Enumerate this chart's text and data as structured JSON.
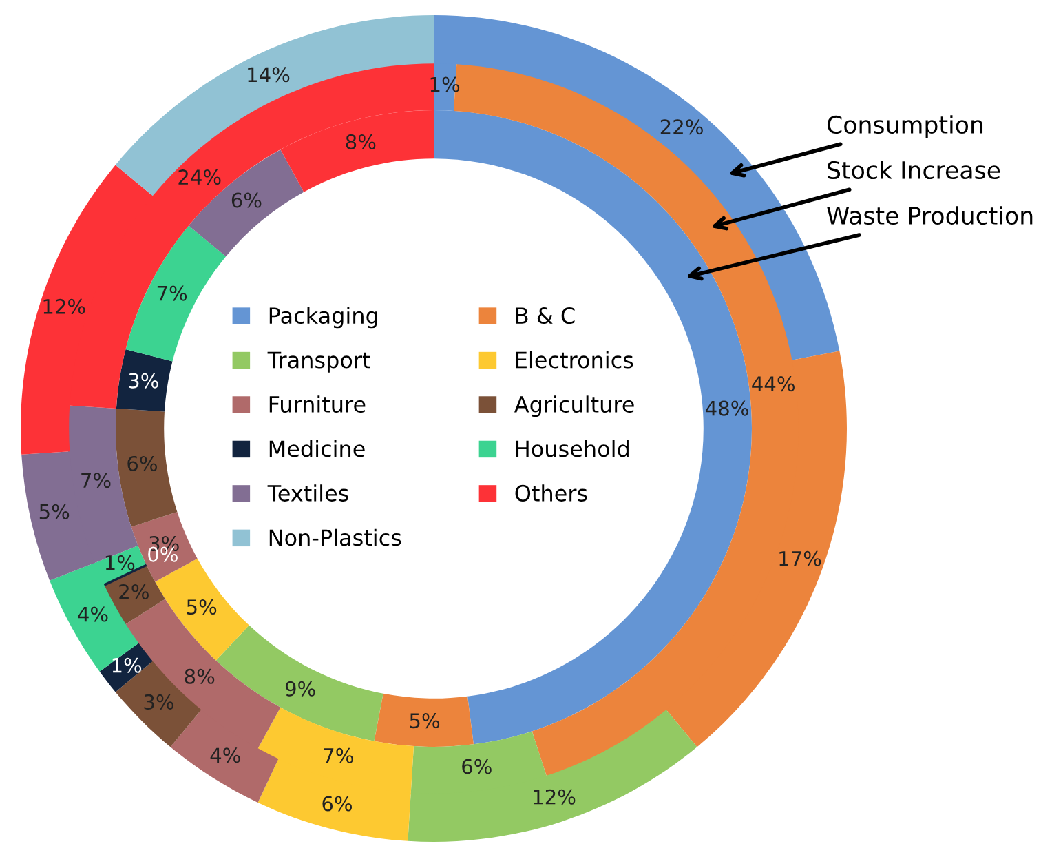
{
  "chart_data": {
    "type": "donut",
    "categories": [
      "Packaging",
      "B & C",
      "Transport",
      "Electronics",
      "Furniture",
      "Agriculture",
      "Medicine",
      "Household",
      "Textiles",
      "Others",
      "Non-Plastics"
    ],
    "colors": [
      "#6495d4",
      "#ec843c",
      "#93c963",
      "#fdc931",
      "#b06a6a",
      "#7b5138",
      "#12243f",
      "#3cd391",
      "#826e93",
      "#fd3237",
      "#91c2d4"
    ],
    "series": [
      {
        "name": "Waste Production",
        "values": [
          48,
          5,
          9,
          5,
          3,
          6,
          3,
          7,
          6,
          8,
          null
        ],
        "value_labels": [
          "48%",
          "5%",
          "9%",
          "5%",
          "3%",
          "6%",
          "3%",
          "7%",
          "6%",
          "8%",
          null
        ]
      },
      {
        "name": "Stock Increase",
        "values": [
          1,
          44,
          6,
          7,
          8,
          2,
          0,
          1,
          7,
          24,
          null
        ],
        "value_labels": [
          "1%",
          "44%",
          "6%",
          "7%",
          "8%",
          "2%",
          "0%",
          "1%",
          "7%",
          "24%",
          null
        ]
      },
      {
        "name": "Consumption",
        "values": [
          22,
          17,
          12,
          6,
          4,
          3,
          1,
          4,
          5,
          12,
          14
        ],
        "value_labels": [
          "22%",
          "17%",
          "12%",
          "6%",
          "4%",
          "3%",
          "1%",
          "4%",
          "5%",
          "12%",
          "14%"
        ]
      }
    ],
    "legend": "center"
  }
}
